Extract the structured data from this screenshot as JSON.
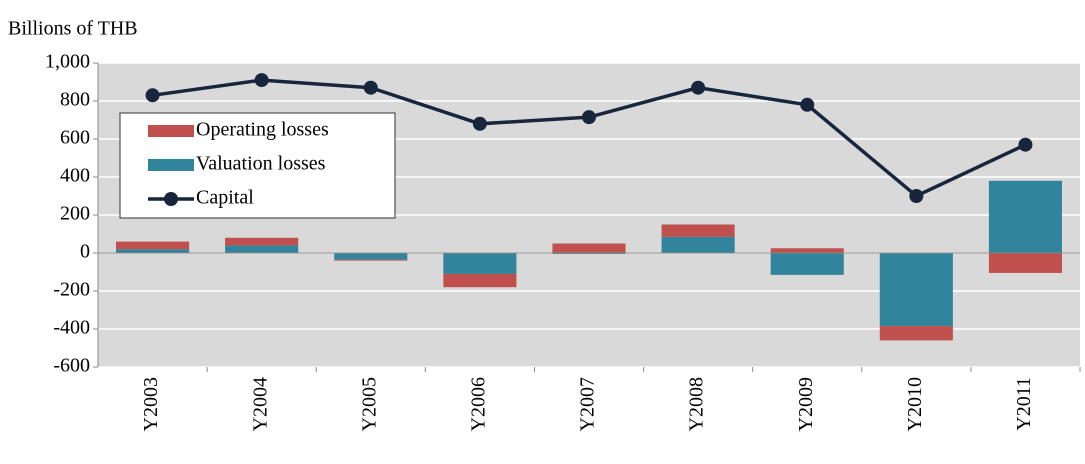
{
  "chart_data": {
    "type": "bar",
    "stacked": true,
    "title": "Billions of THB",
    "categories": [
      "Y2003",
      "Y2004",
      "Y2005",
      "Y2006",
      "Y2007",
      "Y2008",
      "Y2009",
      "Y2010",
      "Y2011"
    ],
    "series": [
      {
        "name": "Valuation losses",
        "type": "bar",
        "color": "#31849b",
        "values": [
          20,
          40,
          -35,
          -110,
          -5,
          85,
          -115,
          -385,
          380
        ]
      },
      {
        "name": "Operating losses",
        "type": "bar",
        "color": "#c0504d",
        "values": [
          40,
          40,
          -5,
          -70,
          50,
          65,
          25,
          -75,
          -105
        ]
      },
      {
        "name": "Capital",
        "type": "line",
        "color": "#17263d",
        "values": [
          830,
          910,
          870,
          680,
          715,
          870,
          780,
          300,
          570
        ]
      }
    ],
    "legend_order": [
      1,
      0,
      2
    ],
    "legend_position": "upper left",
    "ylim": [
      -600,
      1000
    ],
    "yticks": [
      -600,
      -400,
      -200,
      0,
      200,
      400,
      600,
      800,
      {
        "value": 1000,
        "label": "1,000"
      }
    ],
    "grid": true
  }
}
